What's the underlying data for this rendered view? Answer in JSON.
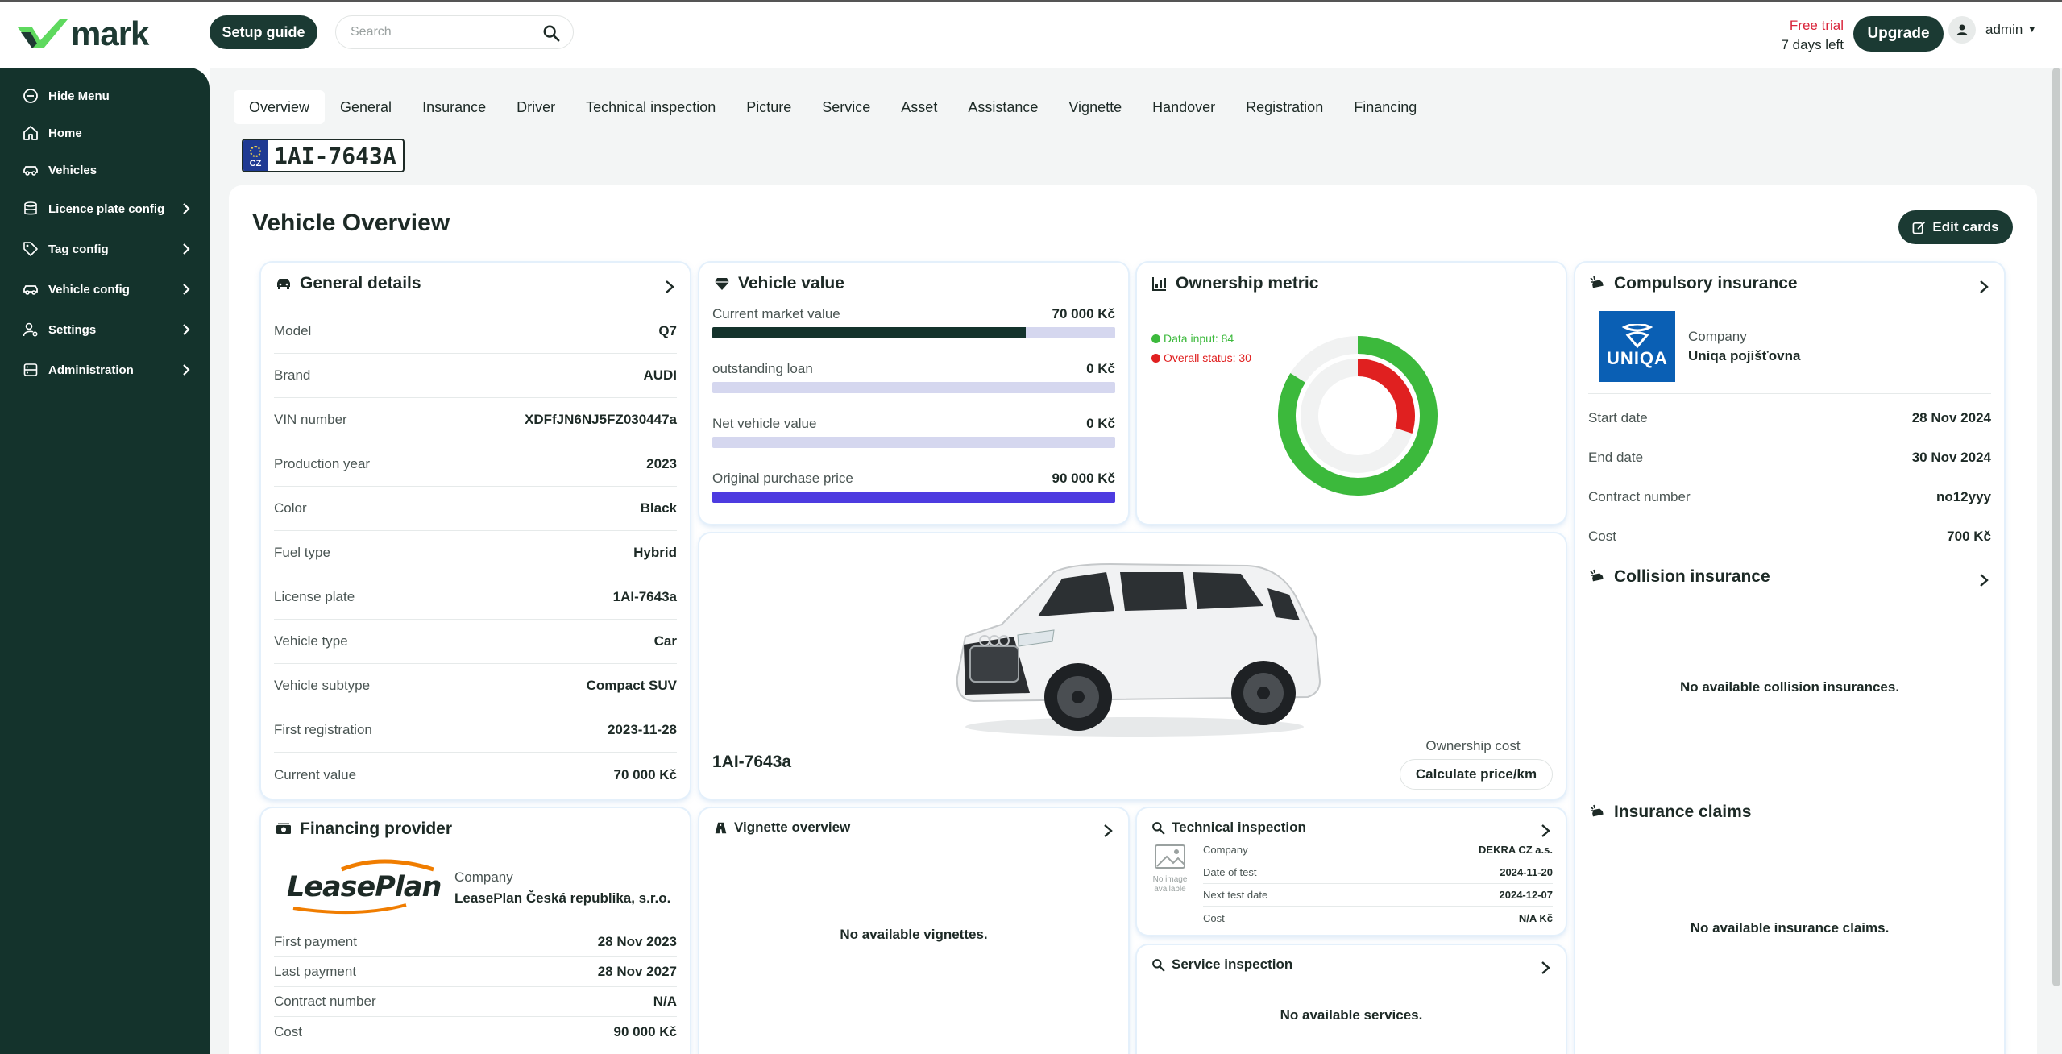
{
  "brand": {
    "name": "mark",
    "accent": "#1b3a33",
    "logo_green": "#5ed95e"
  },
  "header": {
    "setup_guide": "Setup guide",
    "search_placeholder": "Search",
    "trial_label": "Free trial",
    "trial_days": "7 days left",
    "upgrade": "Upgrade",
    "user": "admin"
  },
  "sidebar": {
    "items": [
      {
        "label": "Hide Menu",
        "icon": "minus-circle-icon"
      },
      {
        "label": "Home",
        "icon": "home-icon"
      },
      {
        "label": "Vehicles",
        "icon": "car-icon"
      },
      {
        "label": "Licence plate config",
        "icon": "database-icon"
      },
      {
        "label": "Tag config",
        "icon": "tag-icon"
      },
      {
        "label": "Vehicle config",
        "icon": "car-icon"
      },
      {
        "label": "Settings",
        "icon": "user-settings-icon"
      },
      {
        "label": "Administration",
        "icon": "database-icon"
      }
    ]
  },
  "tabs": [
    "Overview",
    "General",
    "Insurance",
    "Driver",
    "Technical inspection",
    "Picture",
    "Service",
    "Asset",
    "Assistance",
    "Vignette",
    "Handover",
    "Registration",
    "Financing"
  ],
  "plate": {
    "country": "CZ",
    "number": "1AI-7643A"
  },
  "page": {
    "title": "Vehicle Overview",
    "edit_cards": "Edit cards"
  },
  "general": {
    "title": "General details",
    "rows": [
      {
        "label": "Model",
        "value": "Q7"
      },
      {
        "label": "Brand",
        "value": "AUDI"
      },
      {
        "label": "VIN number",
        "value": "XDFfJN6NJ5FZ030447a"
      },
      {
        "label": "Production year",
        "value": "2023"
      },
      {
        "label": "Color",
        "value": "Black"
      },
      {
        "label": "Fuel type",
        "value": "Hybrid"
      },
      {
        "label": "License plate",
        "value": "1AI-7643a"
      },
      {
        "label": "Vehicle type",
        "value": "Car"
      },
      {
        "label": "Vehicle subtype",
        "value": "Compact SUV"
      },
      {
        "label": "First registration",
        "value": "2023-11-28"
      },
      {
        "label": "Current value",
        "value": "70 000 Kč"
      }
    ]
  },
  "vehicle_value": {
    "title": "Vehicle value",
    "bars": [
      {
        "label": "Current market value",
        "value": "70 000  Kč",
        "fill": 0.778,
        "color": "#14332c"
      },
      {
        "label": "outstanding loan",
        "value": "0 Kč",
        "fill": 0,
        "color": "#14332c"
      },
      {
        "label": "Net vehicle value",
        "value": "0 Kč",
        "fill": 0,
        "color": "#14332c"
      },
      {
        "label": "Original purchase price",
        "value": "90 000 Kč",
        "fill": 1,
        "color": "#4d3be0"
      }
    ]
  },
  "ownership": {
    "title": "Ownership metric",
    "legend": [
      {
        "label": "Data input: 84",
        "color": "#3cb93c",
        "value": 84
      },
      {
        "label": "Overall status: 30",
        "color": "#e02020",
        "value": 30
      }
    ]
  },
  "car": {
    "plate": "1AI-7643a",
    "ownership_cost_label": "Ownership cost",
    "calculate": "Calculate price/km"
  },
  "compulsory": {
    "title": "Compulsory insurance",
    "company_label": "Company",
    "company": "Uniqa pojišťovna",
    "logo_text": "UNIQA",
    "rows": [
      {
        "label": "Start date",
        "value": "28 Nov 2024"
      },
      {
        "label": "End date",
        "value": "30 Nov 2024"
      },
      {
        "label": "Contract number",
        "value": "no12yyy"
      },
      {
        "label": "Cost",
        "value": "700 Kč"
      }
    ]
  },
  "collision": {
    "title": "Collision insurance",
    "empty": "No available collision insurances."
  },
  "claims": {
    "title": "Insurance claims",
    "empty": "No available insurance claims."
  },
  "financing": {
    "title": "Financing provider",
    "company_label": "Company",
    "company": "LeasePlan Česká republika, s.r.o.",
    "logo_text": "LeasePlan",
    "rows": [
      {
        "label": "First payment",
        "value": "28 Nov 2023"
      },
      {
        "label": "Last payment",
        "value": "28 Nov 2027"
      },
      {
        "label": "Contract number",
        "value": "N/A"
      },
      {
        "label": "Cost",
        "value": "90 000 Kč"
      }
    ]
  },
  "vignette": {
    "title": "Vignette overview",
    "empty": "No available vignettes."
  },
  "technical": {
    "title": "Technical inspection",
    "no_image": "No image available",
    "rows": [
      {
        "label": "Company",
        "value": "DEKRA CZ a.s."
      },
      {
        "label": "Date of test",
        "value": "2024-11-20"
      },
      {
        "label": "Next test date",
        "value": "2024-12-07"
      },
      {
        "label": "Cost",
        "value": "N/A Kč"
      }
    ]
  },
  "service": {
    "title": "Service inspection",
    "empty": "No available services."
  }
}
